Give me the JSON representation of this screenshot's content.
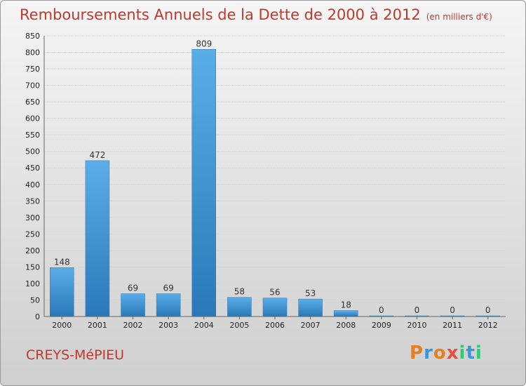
{
  "header": {
    "title": "Remboursements Annuels de la Dette de 2000 à 2012",
    "subtitle": "(en milliers d'€)"
  },
  "footer": {
    "commune": "CREYS-MéPIEU"
  },
  "logo": {
    "letters": [
      "P",
      "r",
      "o",
      "x",
      "i",
      "t",
      "i"
    ],
    "colors": [
      "#e67e22",
      "#3498db",
      "#e67e22",
      "#e74c3c",
      "#2ecc71",
      "#3498db",
      "#2ecc71"
    ]
  },
  "chart_data": {
    "type": "bar",
    "categories": [
      "2000",
      "2001",
      "2002",
      "2003",
      "2004",
      "2005",
      "2006",
      "2007",
      "2008",
      "2009",
      "2010",
      "2011",
      "2012"
    ],
    "values": [
      148,
      472,
      69,
      69,
      809,
      58,
      56,
      53,
      18,
      0,
      0,
      0,
      0
    ],
    "yticks": [
      0,
      50,
      100,
      150,
      200,
      250,
      300,
      350,
      400,
      450,
      500,
      550,
      600,
      650,
      700,
      750,
      800,
      850
    ],
    "ylim": [
      0,
      850
    ],
    "grid": true,
    "bar_color": "#3a8fd6"
  }
}
